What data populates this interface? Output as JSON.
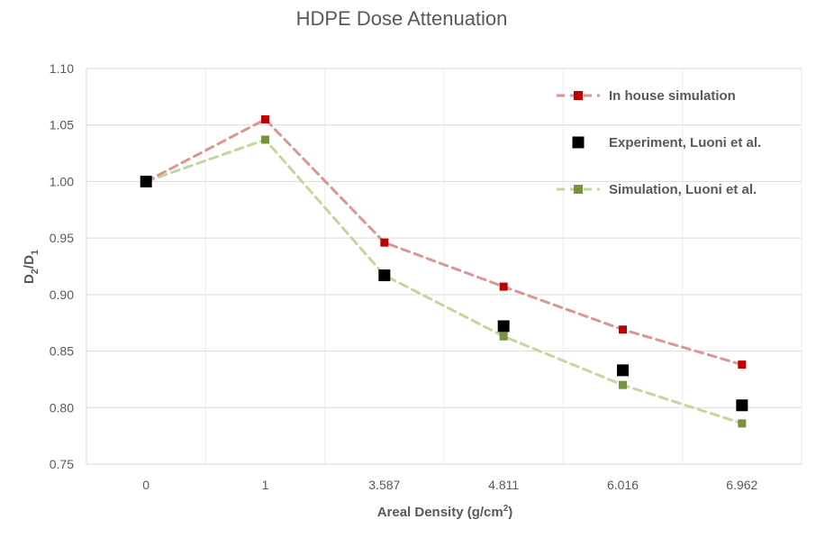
{
  "chart_data": {
    "type": "line",
    "title": "HDPE Dose Attenuation",
    "xlabel_main": "Areal Density (g/cm",
    "xlabel_sup": "2",
    "xlabel_end": ")",
    "ylabel_main": "D",
    "ylabel_sub1": "2",
    "ylabel_slash": "/D",
    "ylabel_sub2": "1",
    "categories": [
      "0",
      "1",
      "3.587",
      "4.811",
      "6.016",
      "6.962"
    ],
    "ylim": [
      0.75,
      1.1
    ],
    "yticks": [
      "0.75",
      "0.80",
      "0.85",
      "0.90",
      "0.95",
      "1.00",
      "1.05",
      "1.10"
    ],
    "grid": true,
    "legend_position": "top-right",
    "series": [
      {
        "name": "In house simulation",
        "style": "dashed-line-with-markers",
        "line_color": "#d99694",
        "marker_color": "#c00000",
        "values": [
          1.0,
          1.055,
          0.946,
          0.907,
          0.869,
          0.838
        ]
      },
      {
        "name": "Experiment, Luoni et al.",
        "style": "markers-only",
        "line_color": "#000000",
        "marker_color": "#000000",
        "values": [
          1.0,
          null,
          0.917,
          0.872,
          0.833,
          0.802
        ]
      },
      {
        "name": "Simulation, Luoni et al.",
        "style": "dashed-line-with-markers",
        "line_color": "#c3d69b",
        "marker_color": "#77933c",
        "values": [
          1.0,
          1.037,
          0.917,
          0.863,
          0.82,
          0.786
        ]
      }
    ]
  }
}
